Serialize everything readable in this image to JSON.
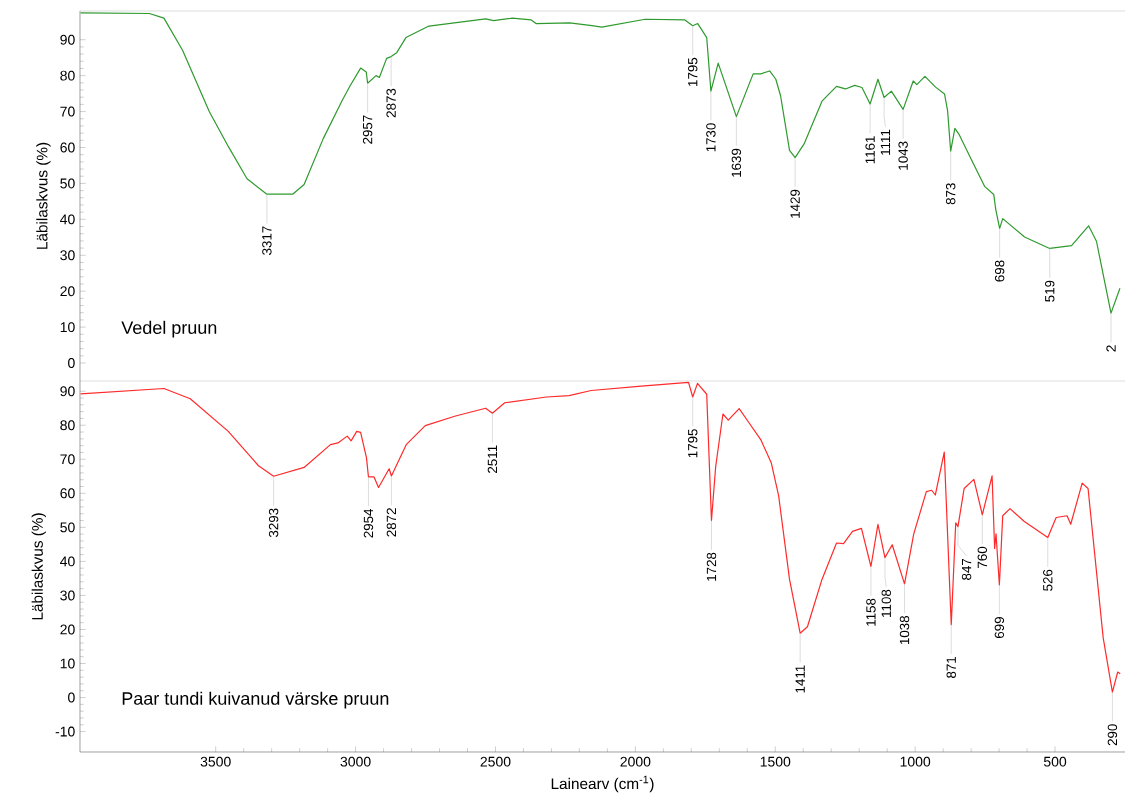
{
  "chart_data": [
    {
      "type": "line",
      "title": "Vedel pruun",
      "ylabel": "Läbilaskvus (%)",
      "tick_labels": "y",
      "xlim": [
        3985,
        250
      ],
      "ylim": [
        -5,
        98
      ],
      "xticks": [
        3500,
        3000,
        2500,
        2000,
        1500,
        1000,
        500
      ],
      "yticks": [
        0,
        10,
        20,
        30,
        40,
        50,
        60,
        70,
        80,
        90
      ],
      "x": [
        3983,
        3737,
        3685,
        3618,
        3523,
        3455,
        3388,
        3317,
        3225,
        3184,
        3116,
        3048,
        3020,
        2982,
        2962,
        2957,
        2927,
        2915,
        2889,
        2873,
        2853,
        2820,
        2738,
        2535,
        2507,
        2440,
        2372,
        2355,
        2235,
        2155,
        2120,
        1965,
        1823,
        1795,
        1777,
        1745,
        1730,
        1704,
        1639,
        1579,
        1552,
        1520,
        1498,
        1481,
        1449,
        1429,
        1397,
        1333,
        1281,
        1249,
        1216,
        1190,
        1161,
        1133,
        1111,
        1085,
        1043,
        1007,
        994,
        965,
        927,
        895,
        884,
        873,
        858,
        842,
        790,
        751,
        719,
        712,
        698,
        687,
        609,
        519,
        441,
        380,
        352,
        300,
        268
      ],
      "series": [
        {
          "color": "#2e9a2e",
          "values": [
            97.5,
            97.3,
            96,
            87,
            70,
            60.3,
            51.3,
            47,
            47,
            49.7,
            62.4,
            73.1,
            77.1,
            82.1,
            81,
            77.9,
            80,
            79.5,
            84.8,
            85.3,
            86.4,
            90.6,
            93.8,
            95.8,
            95.3,
            96,
            95.5,
            94.5,
            94.7,
            93.9,
            93.5,
            95.7,
            95.5,
            93.9,
            94.5,
            90.6,
            75.7,
            83.5,
            68.6,
            80.5,
            80.5,
            81.3,
            79,
            74.4,
            59.2,
            57.2,
            61,
            72.9,
            77,
            76.3,
            77.3,
            76.7,
            72.1,
            79,
            73.9,
            75.7,
            70.6,
            78.5,
            77.5,
            79.8,
            76.8,
            74.9,
            70.2,
            59,
            65.3,
            63.5,
            55.2,
            49.1,
            46.9,
            42.8,
            37.5,
            40.2,
            35.1,
            31.9,
            32.7,
            38.2,
            33.9,
            13.9,
            20.8
          ]
        }
      ],
      "annotations": [
        {
          "text": "3317",
          "x": 3317,
          "y": 47
        },
        {
          "text": "2957",
          "x": 2957,
          "y": 77.9
        },
        {
          "text": "2873",
          "x": 2873,
          "y": 85.3
        },
        {
          "text": "1795",
          "x": 1795,
          "y": 93.9
        },
        {
          "text": "1730",
          "x": 1730,
          "y": 75.7
        },
        {
          "text": "1639",
          "x": 1639,
          "y": 68.6
        },
        {
          "text": "1429",
          "x": 1429,
          "y": 57.2
        },
        {
          "text": "1161",
          "x": 1161,
          "y": 72.1
        },
        {
          "text": "1111",
          "x": 1111,
          "y": 73.9
        },
        {
          "text": "1043",
          "x": 1043,
          "y": 70.6
        },
        {
          "text": "873",
          "x": 873,
          "y": 59
        },
        {
          "text": "698",
          "x": 698,
          "y": 37.5
        },
        {
          "text": "519",
          "x": 519,
          "y": 31.9
        },
        {
          "text": "2",
          "x": 300,
          "y": 13.9
        }
      ]
    },
    {
      "type": "line",
      "title": "Paar tundi kuivanud värske pruun",
      "ylabel": "Läbilaskvus (%)",
      "xlabel": "Lainearv (cm$^{-1}$)",
      "xlim": [
        3985,
        250
      ],
      "ylim": [
        -16,
        93
      ],
      "xticks": [
        3500,
        3000,
        2500,
        2000,
        1500,
        1000,
        500
      ],
      "yticks": [
        -10,
        0,
        10,
        20,
        30,
        40,
        50,
        60,
        70,
        80,
        90
      ],
      "x": [
        3983,
        3685,
        3591,
        3455,
        3347,
        3293,
        3184,
        3090,
        3063,
        3030,
        3016,
        2996,
        2982,
        2961,
        2954,
        2934,
        2918,
        2880,
        2872,
        2819,
        2751,
        2643,
        2535,
        2511,
        2467,
        2318,
        2237,
        2158,
        1979,
        1810,
        1795,
        1778,
        1745,
        1728,
        1713,
        1687,
        1668,
        1629,
        1597,
        1552,
        1514,
        1488,
        1449,
        1411,
        1385,
        1333,
        1281,
        1256,
        1224,
        1192,
        1158,
        1133,
        1108,
        1082,
        1038,
        1005,
        960,
        941,
        928,
        896,
        871,
        855,
        847,
        825,
        790,
        760,
        725,
        716,
        711,
        699,
        687,
        661,
        611,
        526,
        496,
        457,
        444,
        403,
        382,
        328,
        295,
        276,
        267
      ],
      "series": [
        {
          "color": "#ff2a2a",
          "values": [
            89.2,
            90.8,
            87.8,
            78.2,
            68.1,
            65,
            67.6,
            74.3,
            74.8,
            76.8,
            75.4,
            78.2,
            77.9,
            70.4,
            64.8,
            64.8,
            61.7,
            67.2,
            65.1,
            74.3,
            79.9,
            82.7,
            85,
            83.5,
            86.6,
            88.3,
            88.7,
            90.2,
            91.5,
            92.6,
            88.3,
            92.3,
            89.1,
            52,
            67.8,
            83.3,
            81.5,
            84.9,
            81.1,
            75.8,
            68.9,
            59.3,
            34.7,
            18.9,
            20.8,
            34.7,
            45.4,
            45.2,
            48.8,
            49.7,
            38.5,
            50.9,
            41.1,
            44.9,
            33.4,
            48.1,
            60.5,
            60.9,
            59.5,
            72.1,
            21.4,
            51.3,
            50.2,
            61.4,
            64.1,
            53.7,
            65.1,
            43.8,
            48.1,
            33.1,
            53.4,
            55.5,
            51.8,
            47,
            52.9,
            53.4,
            50.9,
            63,
            61.4,
            17.6,
            1.6,
            7.5,
            7
          ]
        }
      ],
      "annotations": [
        {
          "text": "3293",
          "x": 3293,
          "y": 65
        },
        {
          "text": "2954",
          "x": 2954,
          "y": 64.8
        },
        {
          "text": "2872",
          "x": 2872,
          "y": 65.1
        },
        {
          "text": "2511",
          "x": 2511,
          "y": 83.5
        },
        {
          "text": "1795",
          "x": 1795,
          "y": 88.3
        },
        {
          "text": "1728",
          "x": 1728,
          "y": 52
        },
        {
          "text": "1411",
          "x": 1411,
          "y": 18.9
        },
        {
          "text": "1158",
          "x": 1158,
          "y": 38.5
        },
        {
          "text": "1108",
          "x": 1108,
          "y": 41.1
        },
        {
          "text": "1038",
          "x": 1038,
          "y": 33.4
        },
        {
          "text": "871",
          "x": 871,
          "y": 21.4
        },
        {
          "text": "847",
          "x": 847,
          "y": 50.2
        },
        {
          "text": "760",
          "x": 760,
          "y": 53.7
        },
        {
          "text": "699",
          "x": 699,
          "y": 33.1
        },
        {
          "text": "526",
          "x": 526,
          "y": 47
        },
        {
          "text": "290",
          "x": 295,
          "y": 1.6
        }
      ]
    }
  ]
}
